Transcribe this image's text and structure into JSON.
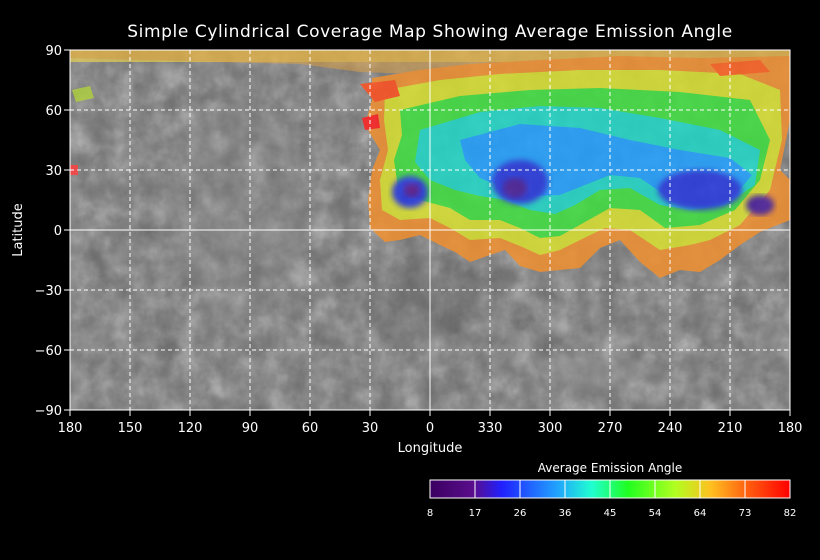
{
  "title": "Simple Cylindrical Coverage Map Showing Average Emission Angle",
  "map": {
    "xlabel": "Longitude",
    "ylabel": "Latitude",
    "x_ticks": [
      "180",
      "150",
      "120",
      "90",
      "60",
      "30",
      "0",
      "330",
      "300",
      "270",
      "240",
      "210",
      "180"
    ],
    "y_ticks": [
      "90",
      "60",
      "30",
      "0",
      "−30",
      "−60",
      "−90"
    ],
    "base_color": "#6e6e6e",
    "grid_color": "#ffffff"
  },
  "colorbar": {
    "title": "Average Emission Angle",
    "ticks": [
      "8",
      "17",
      "26",
      "36",
      "45",
      "54",
      "64",
      "73",
      "82"
    ],
    "colors": [
      "#5a0d8c",
      "#2020ff",
      "#20a0ff",
      "#20ffd0",
      "#20ff20",
      "#b0ff20",
      "#ffc020",
      "#ff6010"
    ]
  },
  "chart_data": {
    "type": "heatmap",
    "title": "Simple Cylindrical Coverage Map Showing Average Emission Angle",
    "xlabel": "Longitude",
    "ylabel": "Latitude",
    "x_range": [
      180,
      -180
    ],
    "y_range": [
      -90,
      90
    ],
    "colorscale_label": "Average Emission Angle",
    "colorscale_range": [
      8,
      82
    ],
    "coverage_regions": [
      {
        "name": "north polar band",
        "lon_range": [
          180,
          -180
        ],
        "lat_range": [
          80,
          90
        ],
        "avg_emission": 70
      },
      {
        "name": "main coverage",
        "lon_range": [
          30,
          -180
        ],
        "lat_range": [
          -20,
          70
        ],
        "avg_emission": 50
      },
      {
        "name": "low-angle center A",
        "lon": 10,
        "lat": 13,
        "avg_emission": 15
      },
      {
        "name": "low-angle center B",
        "lon": -45,
        "lat": 17,
        "avg_emission": 18
      },
      {
        "name": "low-angle center C",
        "lon": -150,
        "lat": 15,
        "avg_emission": 20
      }
    ]
  }
}
